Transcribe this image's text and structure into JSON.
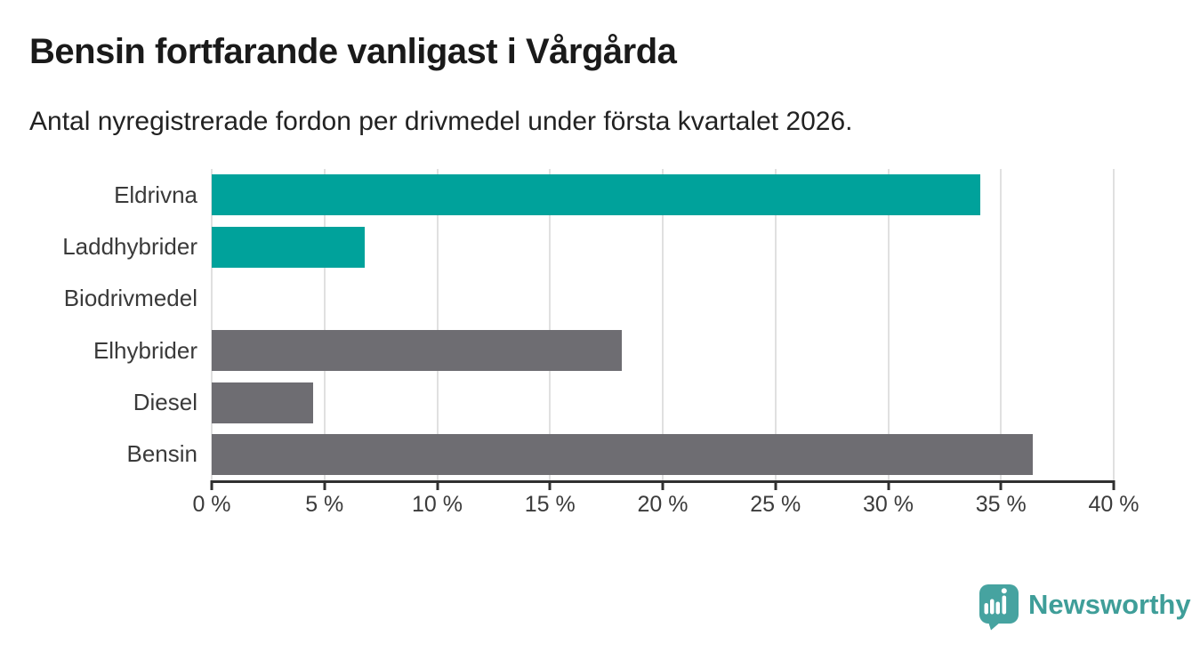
{
  "header": {
    "title": "Bensin fortfarande vanligast i Vårgårda",
    "subtitle": "Antal nyregistrerade fordon per drivmedel under första kvartalet 2026."
  },
  "chart_data": {
    "type": "bar",
    "orientation": "horizontal",
    "title": "Bensin fortfarande vanligast i Vårgårda",
    "subtitle": "Antal nyregistrerade fordon per drivmedel under första kvartalet 2026.",
    "categories": [
      "Eldrivna",
      "Laddhybrider",
      "Biodrivmedel",
      "Elhybrider",
      "Diesel",
      "Bensin"
    ],
    "values": [
      34.1,
      6.8,
      0,
      18.2,
      4.5,
      36.4
    ],
    "unit": "%",
    "xlim": [
      0,
      40
    ],
    "tick_step": 5,
    "x_tick_labels": [
      "0 %",
      "5 %",
      "10 %",
      "15 %",
      "20 %",
      "25 %",
      "30 %",
      "35 %",
      "40 %"
    ],
    "grid": true,
    "legend": "none",
    "bar_colors": [
      "#00A29B",
      "#00A29B",
      "#00A29B",
      "#6E6D72",
      "#6E6D72",
      "#6E6D72"
    ],
    "colors": {
      "highlight": "#00A29B",
      "default_bar": "#6E6D72",
      "gridline": "#E0E0E0",
      "axis": "#303030",
      "tick_label": "#3B3B3B",
      "category_label": "#3A3A3A"
    }
  },
  "footer": {
    "brand": "Newsworthy",
    "logo_icon": "bar-chart-speech-bubble-icon",
    "brand_color": "#3F9E99",
    "icon_color": "#46A3A0"
  }
}
